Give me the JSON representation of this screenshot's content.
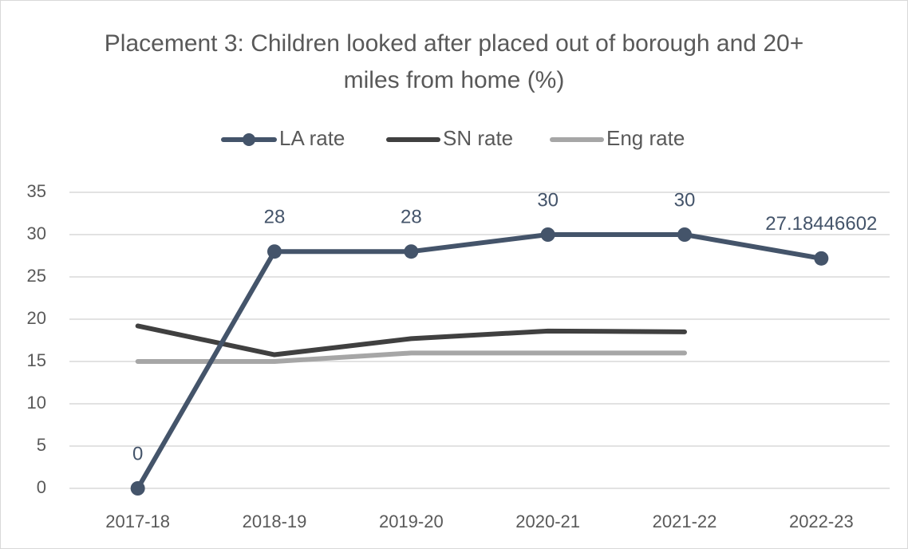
{
  "chart_data": {
    "type": "line",
    "title": "Placement 3: Children looked after placed out of borough and 20+ miles from home (%)",
    "categories": [
      "2017-18",
      "2018-19",
      "2019-20",
      "2020-21",
      "2021-22",
      "2022-23"
    ],
    "series": [
      {
        "name": "LA rate",
        "color": "#44546a",
        "values": [
          0,
          28,
          28,
          30,
          30,
          27.18446602
        ]
      },
      {
        "name": "SN rate",
        "color": "#404040",
        "values": [
          19.2,
          15.8,
          17.7,
          18.6,
          18.5,
          null
        ]
      },
      {
        "name": "Eng rate",
        "color": "#a6a6a6",
        "values": [
          15,
          15,
          16,
          16,
          16,
          null
        ]
      }
    ],
    "ylim": [
      0,
      35
    ],
    "yticks": [
      0,
      5,
      10,
      15,
      20,
      25,
      30,
      35
    ],
    "grid": true,
    "legend": "top"
  }
}
